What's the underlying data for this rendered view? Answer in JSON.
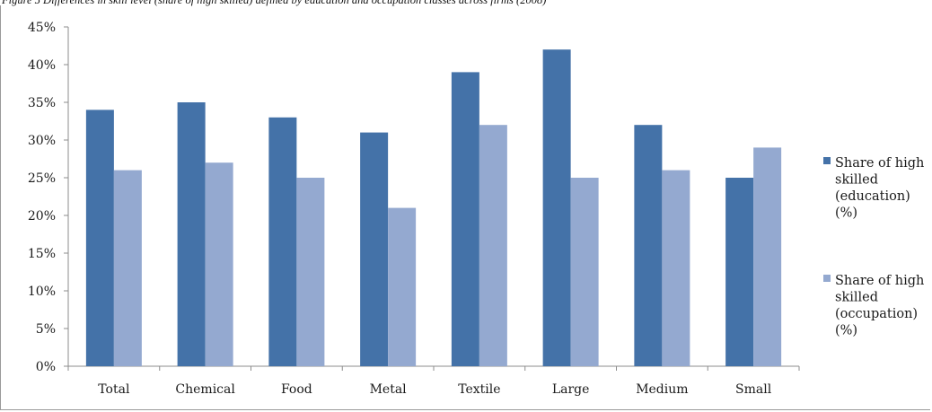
{
  "caption": "Figure 5 Differences in skill level (share of high skilled) defined by education and occupation classes across firms (2008)",
  "chart_data": {
    "type": "bar",
    "categories": [
      "Total",
      "Chemical",
      "Food",
      "Metal",
      "Textile",
      "Large",
      "Medium",
      "Small"
    ],
    "series": [
      {
        "name": [
          "Share of high",
          "skilled",
          "(education)",
          "(%)"
        ],
        "color": "#4472a8",
        "values": [
          34,
          35,
          33,
          31,
          39,
          42,
          32,
          25
        ]
      },
      {
        "name": [
          "Share of high",
          "skilled",
          "(occupation)",
          "(%)"
        ],
        "color": "#94a9d0",
        "values": [
          26,
          27,
          25,
          21,
          32,
          25,
          26,
          29
        ]
      }
    ],
    "ylim": [
      0,
      45
    ],
    "yticks": [
      "0%",
      "5%",
      "10%",
      "15%",
      "20%",
      "25%",
      "30%",
      "35%",
      "40%",
      "45%"
    ],
    "ytick_values": [
      0,
      5,
      10,
      15,
      20,
      25,
      30,
      35,
      40,
      45
    ],
    "grid": false,
    "legend": "right"
  }
}
